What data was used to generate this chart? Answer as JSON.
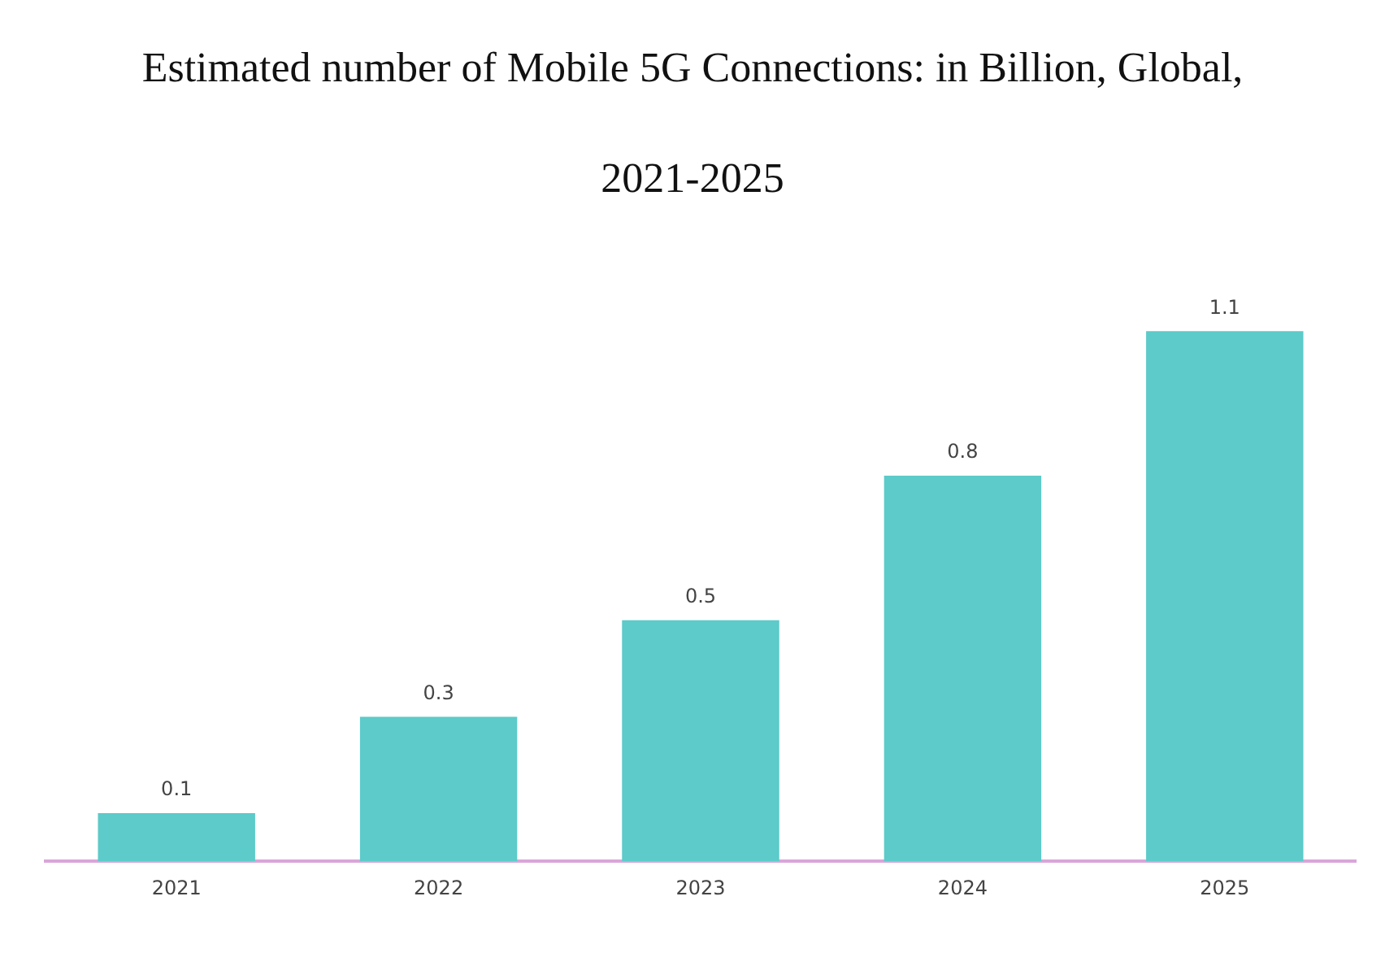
{
  "chart_data": {
    "type": "bar",
    "title": "Estimated number of Mobile 5G Connections: in Billion, Global, 2021-2025",
    "categories": [
      "2021",
      "2022",
      "2023",
      "2024",
      "2025"
    ],
    "values": [
      0.1,
      0.3,
      0.5,
      0.8,
      1.1
    ],
    "color": "#5ccbc9",
    "data_labels": true,
    "tick_labels": "x",
    "grid": false,
    "legend": false
  }
}
